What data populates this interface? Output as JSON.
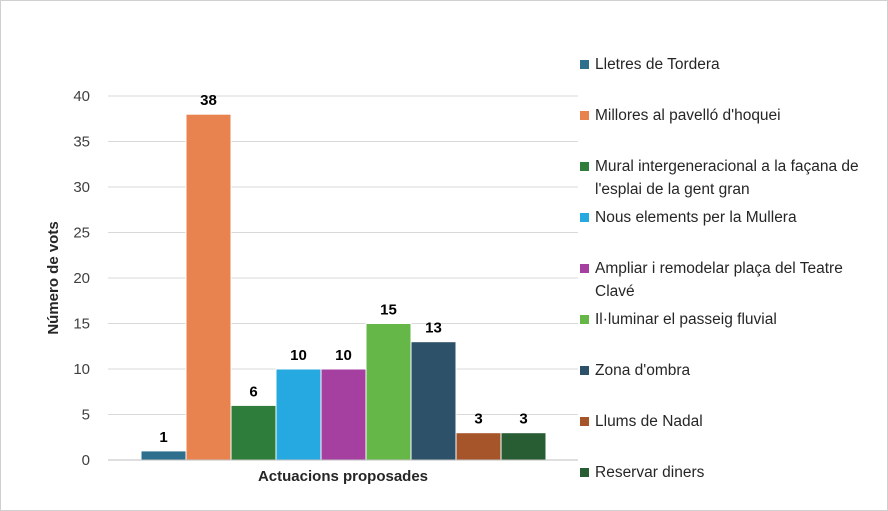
{
  "chart_data": {
    "type": "bar",
    "title": "",
    "xlabel": "Actuacions proposades",
    "ylabel": "Número de vots",
    "ylim": [
      0,
      40
    ],
    "yticks": [
      0,
      5,
      10,
      15,
      20,
      25,
      30,
      35,
      40
    ],
    "grid": true,
    "legend_position": "right",
    "series": [
      {
        "name": "Lletres de Tordera",
        "value": 1,
        "color": "#2e6f8e"
      },
      {
        "name": "Millores al pavelló d'hoquei",
        "value": 38,
        "color": "#e8834f"
      },
      {
        "name": "Mural intergeneracional a la façana de l'esplai de la gent gran",
        "value": 6,
        "color": "#2f7d3b"
      },
      {
        "name": "Nous elements per la Mullera",
        "value": 10,
        "color": "#25a9e0"
      },
      {
        "name": "Ampliar i remodelar plaça del Teatre Clavé",
        "value": 10,
        "color": "#a640a0"
      },
      {
        "name": "Il·luminar el passeig fluvial",
        "value": 15,
        "color": "#65b847"
      },
      {
        "name": "Zona d'ombra",
        "value": 13,
        "color": "#2c5168"
      },
      {
        "name": "Llums de Nadal",
        "value": 3,
        "color": "#a6542a"
      },
      {
        "name": "Reservar diners",
        "value": 3,
        "color": "#285c33"
      }
    ]
  }
}
